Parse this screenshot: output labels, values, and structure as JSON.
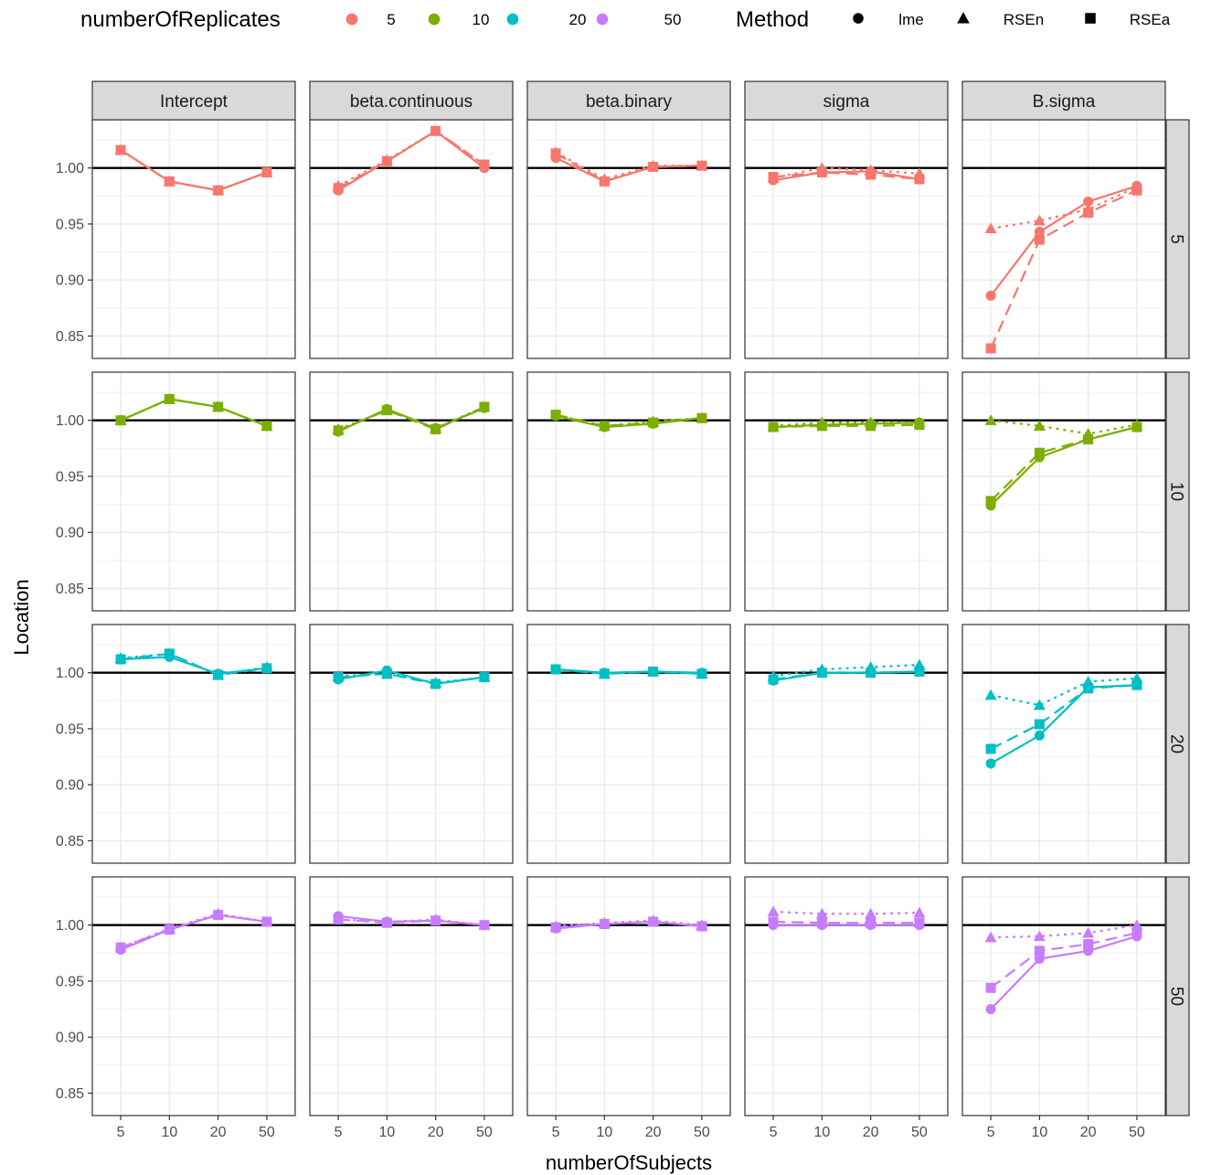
{
  "legend": {
    "color_title": "numberOfReplicates",
    "shape_title": "Method",
    "color_items": [
      {
        "label": "5",
        "color": "#F8766D"
      },
      {
        "label": "10",
        "color": "#7CAE00"
      },
      {
        "label": "20",
        "color": "#00BFC4"
      },
      {
        "label": "50",
        "color": "#C77CFF"
      }
    ],
    "shape_items": [
      {
        "label": "lme",
        "shape": "circle"
      },
      {
        "label": "RSEn",
        "shape": "triangle"
      },
      {
        "label": "RSEa",
        "shape": "square"
      }
    ]
  },
  "chart_data": {
    "type": "line",
    "xlabel": "numberOfSubjects",
    "ylabel": "Location",
    "x_categories": [
      "5",
      "10",
      "20",
      "50"
    ],
    "ylim": [
      0.83,
      1.043
    ],
    "y_ticks": [
      0.85,
      0.9,
      0.95,
      1.0
    ],
    "y_tick_labels": [
      "0.85",
      "0.90",
      "0.95",
      "1.00"
    ],
    "reference_line": 1.0,
    "grid": true,
    "legend_position": "top",
    "col_facets": [
      "Intercept",
      "beta.continuous",
      "beta.binary",
      "sigma",
      "B.sigma"
    ],
    "row_facets": [
      "5",
      "10",
      "20",
      "50"
    ],
    "row_colors": [
      "#F8766D",
      "#7CAE00",
      "#00BFC4",
      "#C77CFF"
    ],
    "methods": [
      "lme",
      "RSEn",
      "RSEa"
    ],
    "method_linetypes": [
      "solid",
      "dotted",
      "dashed"
    ],
    "method_shapes": [
      "circle",
      "triangle",
      "square"
    ],
    "panels": [
      [
        {
          "lme": [
            1.016,
            0.988,
            0.98,
            0.996
          ],
          "RSEn": [
            1.016,
            0.988,
            0.98,
            0.996
          ],
          "RSEa": [
            1.016,
            0.988,
            0.98,
            0.996
          ]
        },
        {
          "lme": [
            0.98,
            1.006,
            1.033,
            1.0
          ],
          "RSEn": [
            0.984,
            1.007,
            1.033,
            1.003
          ],
          "RSEa": [
            0.982,
            1.006,
            1.033,
            1.003
          ]
        },
        {
          "lme": [
            1.009,
            0.988,
            1.001,
            1.002
          ],
          "RSEn": [
            1.014,
            0.99,
            1.002,
            1.002
          ],
          "RSEa": [
            1.013,
            0.988,
            1.001,
            1.002
          ]
        },
        {
          "lme": [
            0.989,
            0.996,
            0.997,
            0.99
          ],
          "RSEn": [
            0.991,
            1.0,
            0.998,
            0.995
          ],
          "RSEa": [
            0.992,
            0.996,
            0.994,
            0.99
          ]
        },
        {
          "lme": [
            0.886,
            0.943,
            0.97,
            0.984
          ],
          "RSEn": [
            0.946,
            0.953,
            0.963,
            0.983
          ],
          "RSEa": [
            0.839,
            0.936,
            0.96,
            0.98
          ]
        }
      ],
      [
        {
          "lme": [
            1.0,
            1.019,
            1.012,
            0.995
          ],
          "RSEn": [
            1.0,
            1.019,
            1.012,
            0.995
          ],
          "RSEa": [
            1.0,
            1.019,
            1.012,
            0.995
          ]
        },
        {
          "lme": [
            0.99,
            1.01,
            0.993,
            1.011
          ],
          "RSEn": [
            0.992,
            1.009,
            0.993,
            1.012
          ],
          "RSEa": [
            0.991,
            1.009,
            0.992,
            1.012
          ]
        },
        {
          "lme": [
            1.004,
            0.994,
            0.997,
            1.002
          ],
          "RSEn": [
            1.005,
            0.995,
            0.999,
            1.002
          ],
          "RSEa": [
            1.005,
            0.995,
            0.998,
            1.002
          ]
        },
        {
          "lme": [
            0.994,
            0.996,
            0.997,
            0.998
          ],
          "RSEn": [
            0.995,
            0.998,
            0.998,
            0.998
          ],
          "RSEa": [
            0.994,
            0.995,
            0.995,
            0.996
          ]
        },
        {
          "lme": [
            0.924,
            0.967,
            0.983,
            0.994
          ],
          "RSEn": [
            1.0,
            0.995,
            0.988,
            0.996
          ],
          "RSEa": [
            0.928,
            0.971,
            0.983,
            0.994
          ]
        }
      ],
      [
        {
          "lme": [
            1.012,
            1.014,
            0.999,
            1.004
          ],
          "RSEn": [
            1.013,
            1.017,
            0.998,
            1.005
          ],
          "RSEa": [
            1.012,
            1.017,
            0.998,
            1.004
          ]
        },
        {
          "lme": [
            0.994,
            1.002,
            0.99,
            0.996
          ],
          "RSEn": [
            0.997,
            0.999,
            0.991,
            0.996
          ],
          "RSEa": [
            0.996,
            0.999,
            0.99,
            0.996
          ]
        },
        {
          "lme": [
            1.003,
            1.0,
            1.001,
            1.0
          ],
          "RSEn": [
            1.003,
            0.999,
            1.001,
            0.999
          ],
          "RSEa": [
            1.003,
            0.999,
            1.001,
            0.999
          ]
        },
        {
          "lme": [
            0.993,
            1.0,
            1.0,
            1.001
          ],
          "RSEn": [
            0.997,
            1.003,
            1.005,
            1.007
          ],
          "RSEa": [
            0.994,
            1.0,
            1.0,
            1.001
          ]
        },
        {
          "lme": [
            0.919,
            0.944,
            0.987,
            0.989
          ],
          "RSEn": [
            0.98,
            0.971,
            0.992,
            0.995
          ],
          "RSEa": [
            0.932,
            0.954,
            0.986,
            0.989
          ]
        }
      ],
      [
        {
          "lme": [
            0.978,
            0.996,
            1.009,
            1.003
          ],
          "RSEn": [
            0.98,
            0.997,
            1.01,
            1.003
          ],
          "RSEa": [
            0.98,
            0.996,
            1.009,
            1.003
          ]
        },
        {
          "lme": [
            1.008,
            1.003,
            1.004,
            1.0
          ],
          "RSEn": [
            1.005,
            1.003,
            1.005,
            1.0
          ],
          "RSEa": [
            1.005,
            1.002,
            1.004,
            1.0
          ]
        },
        {
          "lme": [
            0.997,
            1.001,
            1.003,
            0.999
          ],
          "RSEn": [
            0.999,
            1.002,
            1.004,
            1.0
          ],
          "RSEa": [
            0.998,
            1.001,
            1.003,
            0.999
          ]
        },
        {
          "lme": [
            1.0,
            1.0,
            1.0,
            1.0
          ],
          "RSEn": [
            1.012,
            1.01,
            1.01,
            1.011
          ],
          "RSEa": [
            1.003,
            1.002,
            1.002,
            1.002
          ]
        },
        {
          "lme": [
            0.925,
            0.97,
            0.977,
            0.99
          ],
          "RSEn": [
            0.989,
            0.99,
            0.993,
            1.0
          ],
          "RSEa": [
            0.944,
            0.977,
            0.983,
            0.993
          ]
        }
      ]
    ]
  }
}
